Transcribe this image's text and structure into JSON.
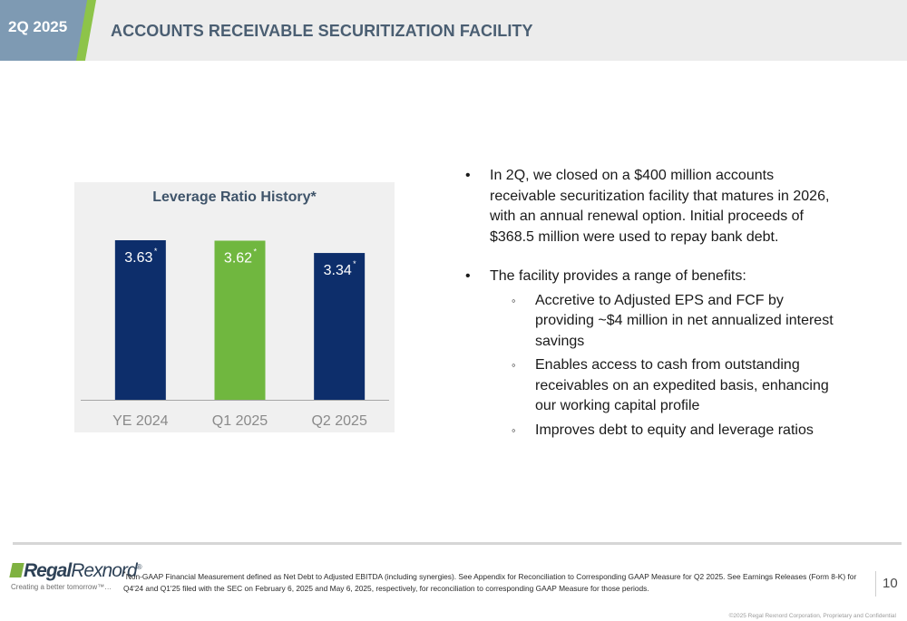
{
  "header": {
    "quarter": "2Q 2025",
    "title": "ACCOUNTS RECEIVABLE SECURITIZATION FACILITY"
  },
  "colors": {
    "quarter_tab": "#7e9ab3",
    "accent_green": "#8dc449",
    "bar_navy": "#0d2e6b",
    "bar_green": "#70b73f",
    "title_text": "#4a5e72"
  },
  "chart_data": {
    "type": "bar",
    "title": "Leverage Ratio History*",
    "categories": [
      "YE 2024",
      "Q1 2025",
      "Q2 2025"
    ],
    "values": [
      3.63,
      3.62,
      3.34
    ],
    "data_labels": [
      "3.63",
      "3.62",
      "3.34"
    ],
    "label_marker": "*",
    "bar_colors": [
      "#0d2e6b",
      "#70b73f",
      "#0d2e6b"
    ],
    "xlabel": "",
    "ylabel": "",
    "ylim": [
      0,
      4.1
    ],
    "grid": false,
    "legend": "none"
  },
  "bullets": [
    {
      "text": "In 2Q, we closed on a $400 million accounts receivable securitization facility that matures in 2026, with an annual renewal option. Initial proceeds of $368.5 million were used to repay bank debt.",
      "sub": []
    },
    {
      "text": "The facility provides a range of benefits:",
      "sub": [
        "Accretive to Adjusted EPS and FCF by providing ~$4 million in net annualized interest savings",
        "Enables access to cash from outstanding receivables on an expedited basis, enhancing our working capital profile",
        "Improves debt to equity and leverage ratios"
      ]
    }
  ],
  "bullet_mark": "•",
  "sub_bullet_mark": "◦",
  "footer": {
    "logo_bold": "Regal",
    "logo_light": "Rexnord",
    "logo_trademark": "®",
    "tagline": "Creating a better tomorrow™…",
    "footnote_marker": "*",
    "footnote": "Non-GAAP Financial Measurement defined as Net Debt to Adjusted EBITDA (including synergies). See Appendix for Reconciliation to Corresponding GAAP Measure for Q2 2025. See Earnings Releases (Form 8-K) for Q4'24 and Q1'25 filed with the SEC on February 6, 2025 and May 6, 2025, respectively, for reconciliation to corresponding GAAP Measure for those periods.",
    "page_number": "10",
    "copyright": "©2025 Regal Rexnord Corporation, Proprietary and Confidential"
  }
}
